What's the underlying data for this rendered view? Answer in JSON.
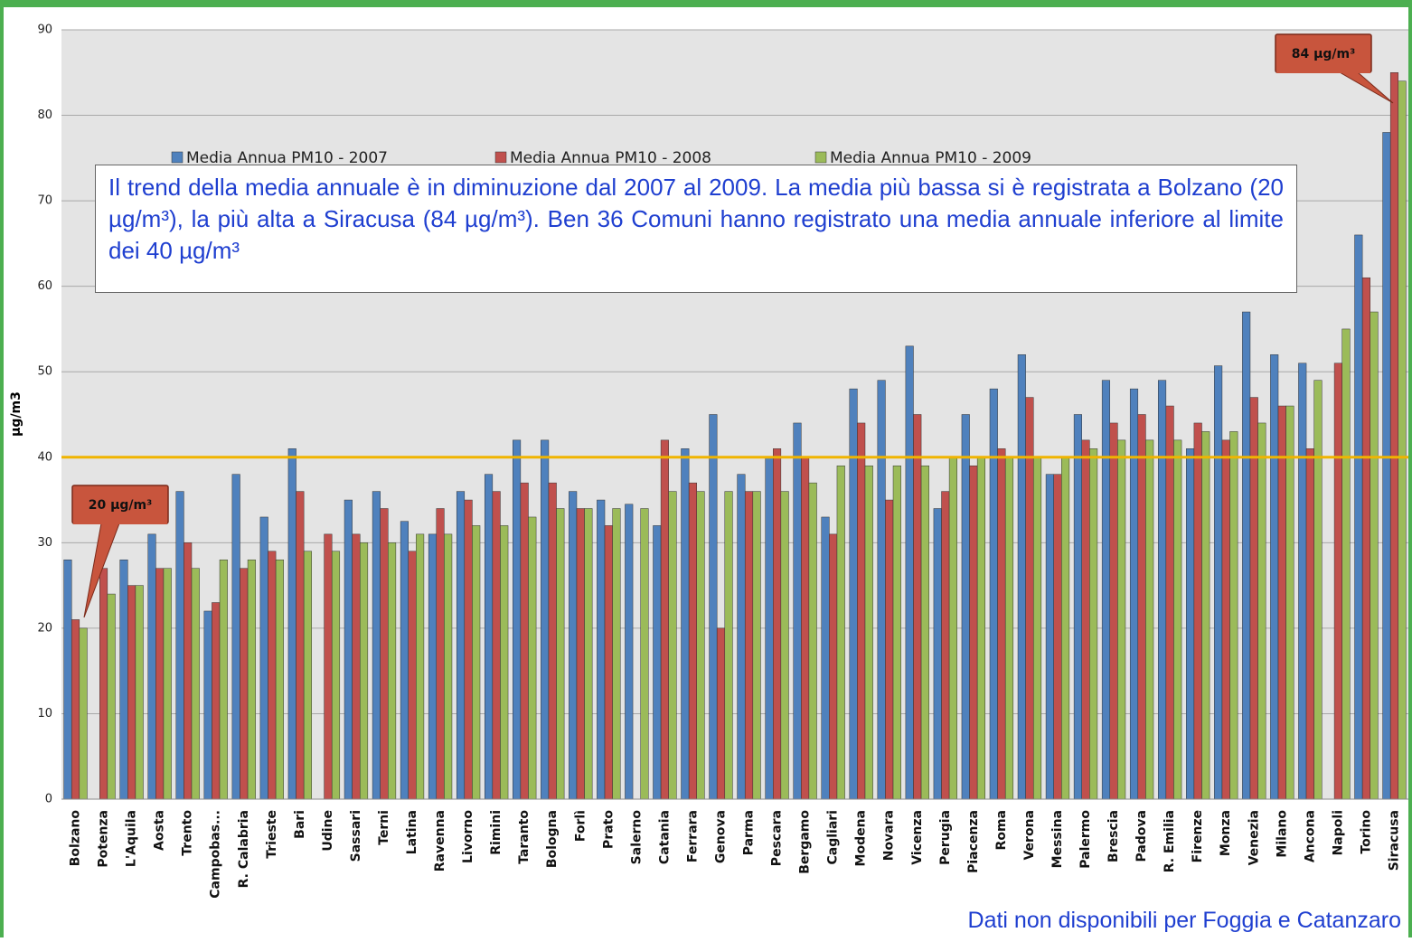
{
  "chart_data": {
    "type": "bar",
    "y_label": "µg/m3",
    "annotation": "Il trend della media annuale è in diminuzione dal 2007 al 2009. La media più bassa si è registrata a Bolzano (20 µg/m³), la più alta a Siracusa (84 µg/m³). Ben 36 Comuni hanno registrato una media annuale inferiore al limite dei 40 µg/m³",
    "footnote": "Dati non disponibili per Foggia e Catanzaro",
    "callouts": [
      "20 µg/m³",
      "84 µg/m³"
    ],
    "reference_line": 40,
    "reference_color": "#f0b400",
    "ylim": [
      0,
      90
    ],
    "yticks": [
      0,
      10,
      20,
      30,
      40,
      50,
      60,
      70,
      80,
      90
    ],
    "grid": true,
    "categories": [
      "Bolzano",
      "Potenza",
      "L'Aquila",
      "Aosta",
      "Trento",
      "Campobas...",
      "R. Calabria",
      "Trieste",
      "Bari",
      "Udine",
      "Sassari",
      "Terni",
      "Latina",
      "Ravenna",
      "Livorno",
      "Rimini",
      "Taranto",
      "Bologna",
      "Forlì",
      "Prato",
      "Salerno",
      "Catania",
      "Ferrara",
      "Genova",
      "Parma",
      "Pescara",
      "Bergamo",
      "Cagliari",
      "Modena",
      "Novara",
      "Vicenza",
      "Perugia",
      "Piacenza",
      "Roma",
      "Verona",
      "Messina",
      "Palermo",
      "Brescia",
      "Padova",
      "R. Emilia",
      "Firenze",
      "Monza",
      "Venezia",
      "Milano",
      "Ancona",
      "Napoli",
      "Torino",
      "Siracusa"
    ],
    "series": [
      {
        "name": "Media Annua PM10 - 2007",
        "color": "#4f81bd",
        "values": [
          28,
          null,
          28,
          31,
          36,
          22,
          38,
          33,
          41,
          null,
          35,
          36,
          32.5,
          31,
          36,
          38,
          42,
          42,
          36,
          35,
          34.5,
          32,
          41,
          45,
          38,
          40,
          44,
          33,
          48,
          49,
          53,
          34,
          45,
          48,
          52,
          38,
          45,
          49,
          48,
          49,
          41,
          50.7,
          57,
          52,
          51,
          null,
          66,
          78
        ]
      },
      {
        "name": "Media Annua PM10 - 2008",
        "color": "#c0504d",
        "values": [
          21,
          27,
          25,
          27,
          30,
          23,
          27,
          29,
          36,
          31,
          31,
          34,
          29,
          34,
          35,
          36,
          37,
          37,
          34,
          32,
          null,
          42,
          37,
          20,
          36,
          41,
          40,
          31,
          44,
          35,
          45,
          36,
          39,
          41,
          47,
          38,
          42,
          44,
          45,
          46,
          44,
          42,
          47,
          46,
          41,
          51,
          61,
          85
        ]
      },
      {
        "name": "Media Annua PM10 - 2009",
        "color": "#9bbb59",
        "values": [
          20,
          24,
          25,
          27,
          27,
          28,
          28,
          28,
          29,
          29,
          30,
          30,
          31,
          31,
          32,
          32,
          33,
          34,
          34,
          34,
          34,
          36,
          36,
          36,
          36,
          36,
          37,
          39,
          39,
          39,
          39,
          40,
          40,
          40,
          40,
          40,
          41,
          42,
          42,
          42,
          43,
          43,
          44,
          46,
          49,
          55,
          57,
          84
        ]
      }
    ]
  }
}
